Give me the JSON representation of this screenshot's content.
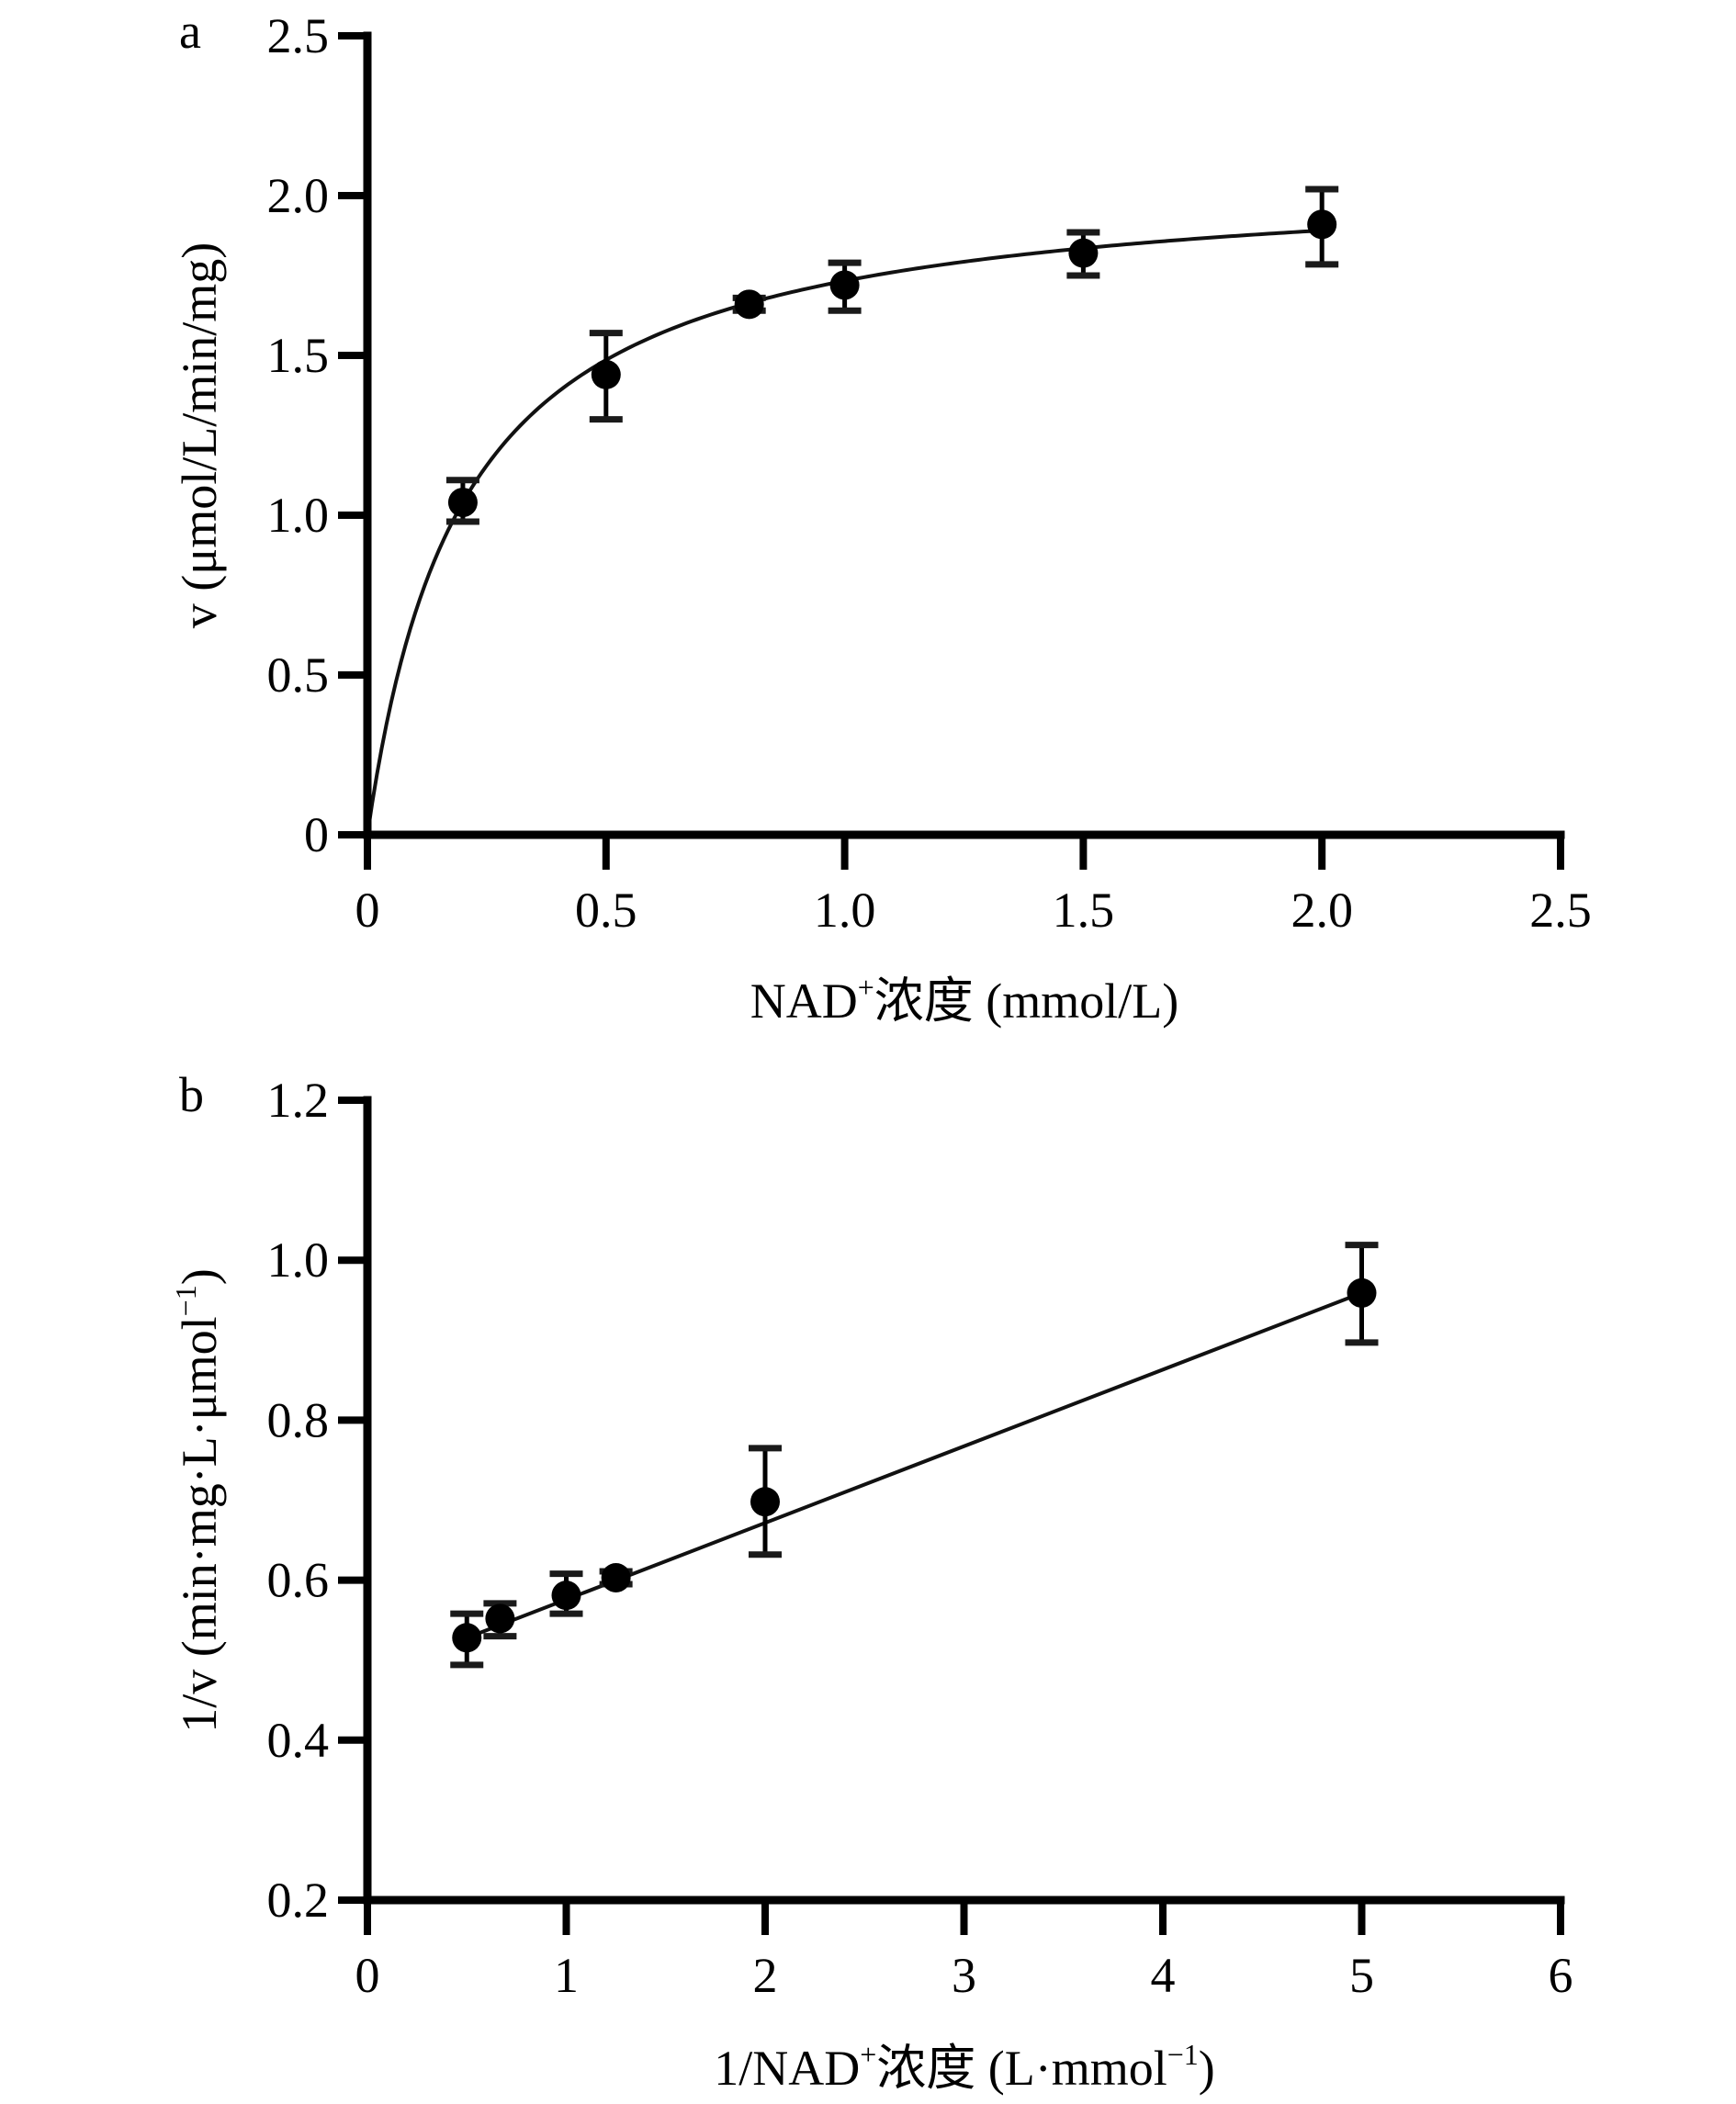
{
  "chart_data": [
    {
      "panel": "a",
      "type": "scatter",
      "title": "",
      "xlabel": "NAD+浓度 (mmol/L)",
      "xlabel_parts": {
        "pre": "NAD",
        "sup": "+",
        "post": "浓度 (mmol/L)"
      },
      "ylabel": "v (μmol/L/min/mg)",
      "xlim": [
        0,
        2.5
      ],
      "ylim": [
        0,
        2.5
      ],
      "xticks": [
        0,
        0.5,
        1.0,
        1.5,
        2.0,
        2.5
      ],
      "xtick_labels": [
        "0",
        "0.5",
        "1.0",
        "1.5",
        "2.0",
        "2.5"
      ],
      "yticks": [
        0,
        0.5,
        1.0,
        1.5,
        2.0,
        2.5
      ],
      "ytick_labels": [
        "0",
        "0.5",
        "1.0",
        "1.5",
        "2.0",
        "2.5"
      ],
      "grid": false,
      "legend": "none",
      "points": [
        {
          "x": 0.2,
          "y": 1.04,
          "err_low": 0.98,
          "err_high": 1.11
        },
        {
          "x": 0.5,
          "y": 1.44,
          "err_low": 1.3,
          "err_high": 1.57
        },
        {
          "x": 0.8,
          "y": 1.66,
          "err_low": 1.64,
          "err_high": 1.68
        },
        {
          "x": 1.0,
          "y": 1.72,
          "err_low": 1.64,
          "err_high": 1.79
        },
        {
          "x": 1.5,
          "y": 1.82,
          "err_low": 1.75,
          "err_high": 1.885
        },
        {
          "x": 2.0,
          "y": 1.91,
          "err_low": 1.785,
          "err_high": 2.02
        }
      ],
      "fit": {
        "model": "michaelis-menten",
        "Vmax": 2.08,
        "Km": 0.2,
        "x_range": [
          0,
          2.0
        ]
      }
    },
    {
      "panel": "b",
      "type": "scatter",
      "title": "",
      "xlabel": "1/NAD+浓度 (L·mmol−1)",
      "xlabel_parts": {
        "pre": "1/NAD",
        "sup": "+",
        "mid": "浓度 (L·mmol",
        "sup2": "−1",
        "post": ")"
      },
      "ylabel": "1/v (min·mg·L·μmol−1)",
      "ylabel_parts": {
        "pre": "1/v (min·mg·L·μmol",
        "sup": "−1",
        "post": ")"
      },
      "xlim": [
        0,
        6
      ],
      "ylim": [
        0.2,
        1.2
      ],
      "xticks": [
        0,
        1,
        2,
        3,
        4,
        5,
        6
      ],
      "xtick_labels": [
        "0",
        "1",
        "2",
        "3",
        "4",
        "5",
        "6"
      ],
      "yticks": [
        0.2,
        0.4,
        0.6,
        0.8,
        1.0,
        1.2
      ],
      "ytick_labels": [
        "0.2",
        "0.4",
        "0.6",
        "0.8",
        "1.0",
        "1.2"
      ],
      "grid": false,
      "legend": "none",
      "points": [
        {
          "x": 0.5,
          "y": 0.528,
          "err_low": 0.494,
          "err_high": 0.558
        },
        {
          "x": 0.667,
          "y": 0.552,
          "err_low": 0.53,
          "err_high": 0.571
        },
        {
          "x": 1.0,
          "y": 0.581,
          "err_low": 0.558,
          "err_high": 0.608
        },
        {
          "x": 1.25,
          "y": 0.603,
          "err_low": 0.595,
          "err_high": 0.611
        },
        {
          "x": 2.0,
          "y": 0.698,
          "err_low": 0.632,
          "err_high": 0.765
        },
        {
          "x": 5.0,
          "y": 0.959,
          "err_low": 0.897,
          "err_high": 1.019
        }
      ],
      "fit": {
        "model": "linear",
        "slope": 0.0958,
        "intercept": 0.48,
        "x_range": [
          0.5,
          5.0
        ]
      }
    }
  ]
}
